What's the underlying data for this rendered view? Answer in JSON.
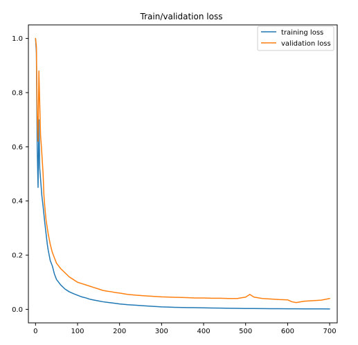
{
  "chart_data": {
    "type": "line",
    "title": "Train/validation loss",
    "xlabel": "",
    "ylabel": "",
    "xlim": [
      -17,
      718
    ],
    "ylim": [
      -0.05,
      1.05
    ],
    "xticks": [
      0,
      100,
      200,
      300,
      400,
      500,
      600,
      700
    ],
    "yticks": [
      0.0,
      0.2,
      0.4,
      0.6,
      0.8,
      1.0
    ],
    "xtick_labels": [
      "0",
      "100",
      "200",
      "300",
      "400",
      "500",
      "600",
      "700"
    ],
    "ytick_labels": [
      "0.0",
      "0.2",
      "0.4",
      "0.6",
      "0.8",
      "1.0"
    ],
    "grid": false,
    "legend_position": "top-right",
    "series": [
      {
        "name": "training loss",
        "color": "#1f77b4",
        "x": [
          0,
          2,
          4,
          6,
          8,
          10,
          12,
          15,
          18,
          20,
          22,
          25,
          28,
          30,
          35,
          40,
          45,
          50,
          60,
          70,
          80,
          90,
          100,
          110,
          120,
          130,
          140,
          150,
          160,
          170,
          180,
          190,
          200,
          220,
          240,
          260,
          280,
          300,
          320,
          340,
          360,
          380,
          400,
          420,
          440,
          460,
          480,
          500,
          520,
          540,
          560,
          580,
          600,
          620,
          640,
          660,
          680,
          700
        ],
        "values": [
          1.0,
          0.95,
          0.6,
          0.45,
          0.7,
          0.52,
          0.48,
          0.42,
          0.38,
          0.35,
          0.32,
          0.28,
          0.24,
          0.22,
          0.18,
          0.16,
          0.13,
          0.11,
          0.09,
          0.075,
          0.065,
          0.058,
          0.052,
          0.046,
          0.042,
          0.037,
          0.034,
          0.031,
          0.028,
          0.026,
          0.024,
          0.022,
          0.02,
          0.017,
          0.015,
          0.013,
          0.011,
          0.009,
          0.008,
          0.007,
          0.0065,
          0.006,
          0.0055,
          0.005,
          0.0045,
          0.004,
          0.0035,
          0.003,
          0.0028,
          0.0026,
          0.0024,
          0.0022,
          0.002,
          0.0019,
          0.0018,
          0.0017,
          0.0016,
          0.0015
        ]
      },
      {
        "name": "validation loss",
        "color": "#ff7f0e",
        "x": [
          0,
          2,
          4,
          6,
          8,
          10,
          12,
          14,
          16,
          18,
          20,
          22,
          25,
          28,
          30,
          35,
          40,
          45,
          50,
          55,
          60,
          70,
          80,
          90,
          100,
          110,
          120,
          130,
          140,
          150,
          160,
          170,
          180,
          190,
          200,
          220,
          240,
          260,
          280,
          300,
          320,
          340,
          360,
          380,
          400,
          420,
          440,
          460,
          480,
          500,
          510,
          520,
          540,
          560,
          580,
          600,
          610,
          620,
          640,
          660,
          680,
          700
        ],
        "values": [
          1.0,
          0.97,
          0.72,
          0.62,
          0.88,
          0.76,
          0.64,
          0.6,
          0.55,
          0.5,
          0.42,
          0.38,
          0.33,
          0.3,
          0.28,
          0.24,
          0.21,
          0.19,
          0.17,
          0.16,
          0.15,
          0.135,
          0.12,
          0.11,
          0.1,
          0.095,
          0.09,
          0.085,
          0.08,
          0.075,
          0.07,
          0.067,
          0.065,
          0.062,
          0.06,
          0.055,
          0.052,
          0.05,
          0.048,
          0.046,
          0.045,
          0.044,
          0.043,
          0.042,
          0.042,
          0.041,
          0.041,
          0.04,
          0.04,
          0.045,
          0.055,
          0.045,
          0.04,
          0.038,
          0.036,
          0.035,
          0.028,
          0.025,
          0.03,
          0.032,
          0.034,
          0.04
        ]
      }
    ]
  }
}
